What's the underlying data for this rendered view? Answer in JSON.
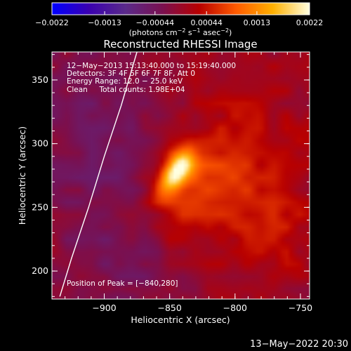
{
  "chart_data": {
    "type": "heatmap",
    "title": "Reconstructed RHESSI Image",
    "xlabel": "Heliocentric X (arcsec)",
    "ylabel": "Heliocentric Y (arcsec)",
    "xlim": [
      -940,
      -743
    ],
    "ylim": [
      178,
      372
    ],
    "x_ticks": [
      {
        "value": -900,
        "label": "−900"
      },
      {
        "value": -850,
        "label": "−850"
      },
      {
        "value": -800,
        "label": "−800"
      },
      {
        "value": -750,
        "label": "−750"
      }
    ],
    "y_ticks": [
      {
        "value": 200,
        "label": "200"
      },
      {
        "value": 250,
        "label": "250"
      },
      {
        "value": 300,
        "label": "300"
      },
      {
        "value": 350,
        "label": "350"
      }
    ],
    "annotations": [
      "12−May−2013 15:13:40.000 to 15:19:40.000",
      "Detectors: 3F 4F 5F 6F 7F 8F, Att 0",
      "Energy Range: 12.0 − 25.0 keV",
      "Clean     Total counts: 1.98E+04"
    ],
    "peak_text": "Position of Peak = [−840,280]",
    "peak": {
      "x": -840,
      "y": 280
    },
    "limb_curve": [
      [
        -934,
        180
      ],
      [
        -925,
        210
      ],
      [
        -912,
        250
      ],
      [
        -900,
        290
      ],
      [
        -887,
        330
      ],
      [
        -875,
        372
      ]
    ],
    "colorbar": {
      "range": [
        -0.0022,
        0.0022
      ],
      "tick_labels": [
        "−0.0022",
        "−0.0013",
        "−0.00044",
        "0.00044",
        "0.0013",
        "0.0022"
      ],
      "tick_values": [
        -0.0022,
        -0.0013,
        -0.00044,
        0.00044,
        0.0013,
        0.0022
      ],
      "label_prefix": "(photons cm",
      "label_sup1": "−2",
      "label_mid": " s",
      "label_sup2": "−1",
      "label_mid2": " asec",
      "label_sup3": "−2",
      "label_suffix": ")",
      "colors": [
        "#0000ff",
        "#3a00b0",
        "#5a2a8a",
        "#7a1050",
        "#b80000",
        "#ff5a00",
        "#ffb000",
        "#ffffe0"
      ]
    },
    "sources": [
      {
        "x": -845,
        "y": 278,
        "sx": 7,
        "sy": 14,
        "amp": 0.0022,
        "angle_deg": -32
      },
      {
        "x": -832,
        "y": 262,
        "sx": 18,
        "sy": 30,
        "amp": 0.0006,
        "angle_deg": -30
      },
      {
        "x": -795,
        "y": 280,
        "sx": 30,
        "sy": 55,
        "amp": 0.00035,
        "angle_deg": 0
      },
      {
        "x": -770,
        "y": 240,
        "sx": 20,
        "sy": 30,
        "amp": 0.0003,
        "angle_deg": 0
      },
      {
        "x": -905,
        "y": 300,
        "sx": 35,
        "sy": 70,
        "amp": -0.00045,
        "angle_deg": 0
      },
      {
        "x": -880,
        "y": 200,
        "sx": 30,
        "sy": 25,
        "amp": -0.0003,
        "angle_deg": 0
      }
    ]
  },
  "footer": {
    "timestamp": "13−May−2022 20:30"
  }
}
